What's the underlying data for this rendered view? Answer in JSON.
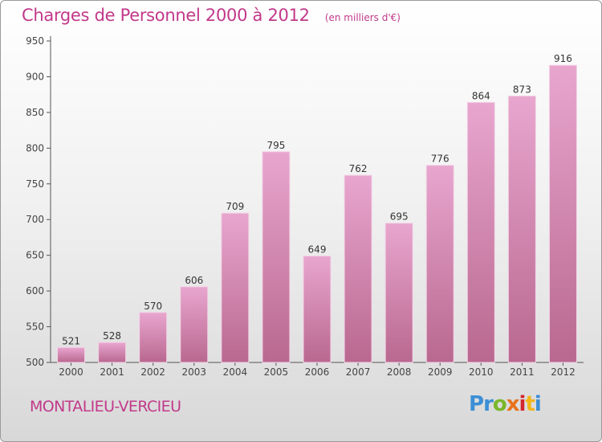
{
  "title": "Charges de Personnel 2000 à 2012",
  "subtitle": "(en milliers d'€)",
  "commune": "MONTALIEU-VERCIEU",
  "logo": {
    "letters": [
      "P",
      "r",
      "o",
      "x",
      "i",
      "t",
      "i"
    ],
    "colors": [
      "#3b8fd6",
      "#3b8fd6",
      "#7ab62a",
      "#e8721c",
      "#d4262e",
      "#f2b51b",
      "#3b8fd6"
    ]
  },
  "colors": {
    "accent": "#c2398a",
    "bar_top": "#e8a6cf",
    "bar_bottom": "#b9688f"
  },
  "chart_data": {
    "type": "bar",
    "categories": [
      "2000",
      "2001",
      "2002",
      "2003",
      "2004",
      "2005",
      "2006",
      "2007",
      "2008",
      "2009",
      "2010",
      "2011",
      "2012"
    ],
    "values": [
      521,
      528,
      570,
      606,
      709,
      795,
      649,
      762,
      695,
      776,
      864,
      873,
      916
    ],
    "ylim": [
      500,
      950
    ],
    "yticks": [
      500,
      550,
      600,
      650,
      700,
      750,
      800,
      850,
      900,
      950
    ],
    "grid": false,
    "legend": "none"
  }
}
